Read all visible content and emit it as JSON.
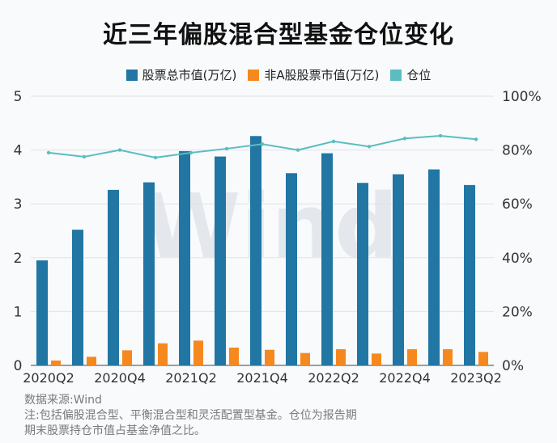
{
  "title": "近三年偏股混合型基金仓位变化",
  "chart_data": {
    "type": "bar+line",
    "categories": [
      "2020Q2",
      "2020Q3",
      "2020Q4",
      "2021Q1",
      "2021Q2",
      "2021Q3",
      "2021Q4",
      "2022Q1",
      "2022Q2",
      "2022Q3",
      "2022Q4",
      "2023Q1",
      "2023Q2"
    ],
    "x_tick_labels": [
      "2020Q2",
      "2020Q4",
      "2021Q2",
      "2021Q4",
      "2022Q2",
      "2022Q4",
      "2023Q2"
    ],
    "series": [
      {
        "name": "股票总市值(万亿)",
        "type": "bar",
        "axis": "left",
        "color": "#2176a3",
        "values": [
          1.95,
          2.52,
          3.26,
          3.4,
          3.98,
          3.88,
          4.26,
          3.57,
          3.94,
          3.39,
          3.55,
          3.64,
          3.35
        ]
      },
      {
        "name": "非A股股票市值(万亿)",
        "type": "bar",
        "axis": "left",
        "color": "#f5891f",
        "values": [
          0.09,
          0.16,
          0.28,
          0.41,
          0.46,
          0.33,
          0.29,
          0.23,
          0.3,
          0.22,
          0.3,
          0.3,
          0.25
        ]
      },
      {
        "name": "仓位",
        "type": "line",
        "axis": "right",
        "color": "#5bbdc0",
        "values": [
          0.79,
          0.775,
          0.8,
          0.772,
          0.79,
          0.805,
          0.822,
          0.8,
          0.832,
          0.813,
          0.843,
          0.853,
          0.84
        ]
      }
    ],
    "y_left": {
      "min": 0,
      "max": 5,
      "ticks": [
        "0",
        "1",
        "2",
        "3",
        "4",
        "5"
      ]
    },
    "y_right": {
      "min": 0,
      "max": 1,
      "ticks": [
        "0%",
        "20%",
        "40%",
        "60%",
        "80%",
        "100%"
      ]
    },
    "grid": true,
    "legend_position": "top-center",
    "watermark": "Wind"
  },
  "notes": [
    "数据来源:Wind",
    "注:包括偏股混合型、平衡混合型和灵活配置型基金。仓位为报告期",
    "期末股票持仓市值占基金净值之比。"
  ]
}
